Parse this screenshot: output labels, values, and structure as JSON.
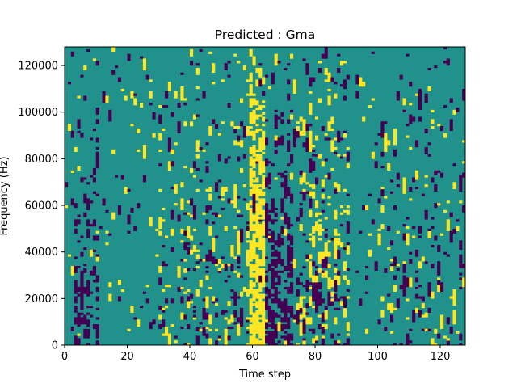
{
  "chart_data": {
    "type": "heatmap",
    "title": "Predicted : Gma",
    "xlabel": "Time step",
    "ylabel": "Frequency (Hz)",
    "xlim": [
      0,
      128
    ],
    "ylim": [
      0,
      128000
    ],
    "x_ticks": [
      "0",
      "20",
      "40",
      "60",
      "80",
      "100",
      "120"
    ],
    "y_ticks": [
      "0",
      "20000",
      "40000",
      "60000",
      "80000",
      "100000",
      "120000"
    ],
    "grid": false,
    "legend": "none",
    "n_time_steps": 128,
    "n_freq_bins": 128,
    "value_levels": {
      "low": -1,
      "mid": 0,
      "high": 1
    },
    "colors": {
      "low": "#440154",
      "mid": "#21918c",
      "high": "#fde725",
      "axis": "#000000",
      "background": "#ffffff"
    },
    "description": "Ternary-valued spectrogram-like map; mostly mid level with scattered low (purple) and high (yellow) cells, a dense high-valued band around time steps 59-63 and dense low-valued clusters near time steps 4-10 and 66-72 at low frequencies."
  }
}
